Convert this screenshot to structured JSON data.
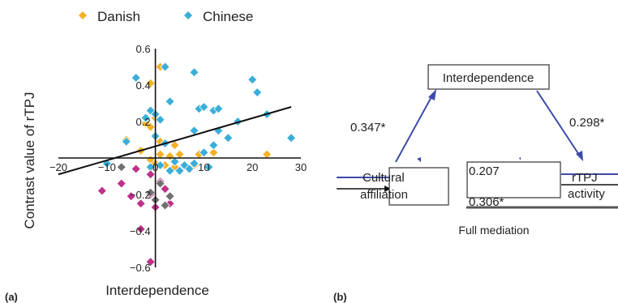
{
  "panels": {
    "a": "(a)",
    "b": "(b)"
  },
  "colors": {
    "danish": "#f3b124",
    "chinese": "#3aaed8",
    "magenta": "#c0308a",
    "grey": "#707070",
    "arrow": "#3e4aa8",
    "line": "#111111"
  },
  "chart_data": {
    "type": "scatter",
    "xlabel": "Interdependence",
    "ylabel": "Contrast value of rTPJ",
    "xlim": [
      -20,
      30
    ],
    "ylim": [
      -0.6,
      0.6
    ],
    "x_ticks": [
      "−20",
      "−10",
      "0",
      "10",
      "20",
      "30"
    ],
    "y_ticks": [
      "−0.6",
      "−0.4",
      "−0.2",
      "0",
      "0.2",
      "0.4",
      "0.6"
    ],
    "legend": [
      "Danish",
      "Chinese"
    ],
    "legend_position": "top",
    "series": [
      {
        "name": "Danish",
        "color": "#f3b124",
        "points": [
          [
            1,
            0.5
          ],
          [
            2,
            0.5
          ],
          [
            -1,
            0.41
          ],
          [
            0,
            0.22
          ],
          [
            -2,
            0.19
          ],
          [
            -1,
            0.17
          ],
          [
            1,
            0.09
          ],
          [
            -6,
            0.1
          ],
          [
            4,
            0.07
          ],
          [
            -3,
            0.04
          ],
          [
            1,
            0.02
          ],
          [
            3,
            0.01
          ],
          [
            5,
            0.02
          ],
          [
            9,
            0.02
          ],
          [
            12,
            0.03
          ],
          [
            23,
            0.02
          ],
          [
            -1,
            -0.01
          ],
          [
            0,
            -0.03
          ],
          [
            2,
            -0.04
          ],
          [
            4,
            -0.05
          ],
          [
            8,
            -0.04
          ]
        ]
      },
      {
        "name": "Chinese",
        "color": "#3aaed8",
        "points": [
          [
            2,
            0.5
          ],
          [
            8,
            0.47
          ],
          [
            -4,
            0.44
          ],
          [
            20,
            0.43
          ],
          [
            21,
            0.36
          ],
          [
            3,
            0.31
          ],
          [
            -1,
            0.26
          ],
          [
            9,
            0.27
          ],
          [
            12,
            0.26
          ],
          [
            13,
            0.27
          ],
          [
            10,
            0.28
          ],
          [
            0,
            0.24
          ],
          [
            23,
            0.24
          ],
          [
            -2,
            0.22
          ],
          [
            1,
            0.21
          ],
          [
            17,
            0.2
          ],
          [
            8,
            0.15
          ],
          [
            13,
            0.15
          ],
          [
            0,
            0.12
          ],
          [
            15,
            0.11
          ],
          [
            28,
            0.11
          ],
          [
            -6,
            0.09
          ],
          [
            2,
            0.08
          ],
          [
            12,
            0.07
          ],
          [
            10,
            0.03
          ],
          [
            4,
            -0.02
          ],
          [
            6,
            -0.04
          ],
          [
            8,
            -0.03
          ],
          [
            11,
            -0.05
          ],
          [
            -1,
            -0.05
          ],
          [
            -10,
            -0.03
          ],
          [
            3,
            -0.07
          ],
          [
            5,
            -0.07
          ],
          [
            7,
            -0.06
          ],
          [
            1,
            -0.04
          ]
        ]
      },
      {
        "name": "",
        "color": "#c0308a",
        "points": [
          [
            -11,
            -0.18
          ],
          [
            -7,
            -0.14
          ],
          [
            -5,
            -0.21
          ],
          [
            -1,
            -0.2
          ],
          [
            -3,
            -0.25
          ],
          [
            1,
            -0.13
          ],
          [
            2,
            -0.17
          ],
          [
            -1,
            -0.09
          ],
          [
            -4,
            -0.06
          ],
          [
            -3,
            -0.39
          ],
          [
            -1,
            -0.57
          ],
          [
            0,
            -0.27
          ],
          [
            3,
            -0.25
          ]
        ]
      },
      {
        "name": "",
        "color": "#707070",
        "points": [
          [
            -1,
            -0.19
          ],
          [
            0,
            -0.23
          ],
          [
            2,
            -0.26
          ],
          [
            1,
            -0.14
          ],
          [
            3,
            -0.21
          ],
          [
            -7,
            -0.05
          ]
        ]
      }
    ],
    "trend_line": {
      "x": [
        -20,
        28
      ],
      "y": [
        -0.09,
        0.28
      ]
    }
  },
  "mediation": {
    "mediator": "Interdependence",
    "predictor_line1": "Cultural",
    "predictor_line2": "affiliation",
    "outcome_line1": "rTPJ",
    "outcome_line2": "activity",
    "path_a": "0.347*",
    "path_b": "0.298*",
    "direct": "0.207",
    "total": "0.306*",
    "caption": "Full mediation"
  }
}
